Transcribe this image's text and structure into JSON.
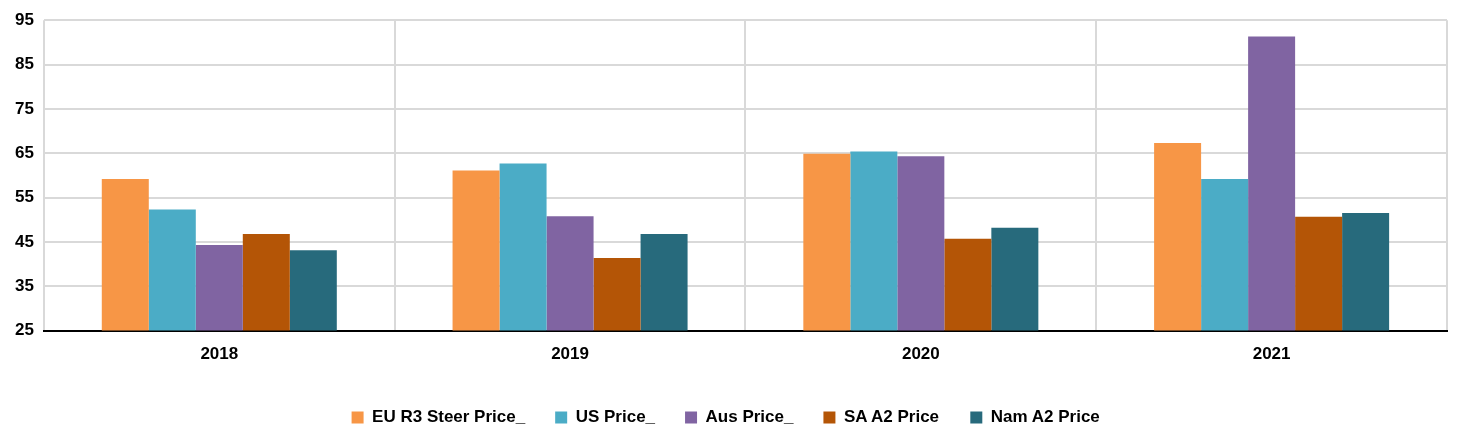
{
  "chart_data": {
    "type": "bar",
    "categories": [
      "2018",
      "2019",
      "2020",
      "2021"
    ],
    "series": [
      {
        "name": "EU R3 Steer Price_",
        "color": "#f79646",
        "values": [
          59.2,
          61.1,
          64.9,
          67.3
        ]
      },
      {
        "name": "US Price_",
        "color": "#4bacc6",
        "values": [
          52.3,
          62.7,
          65.4,
          59.2
        ]
      },
      {
        "name": "Aus Price_",
        "color": "#8064a2",
        "values": [
          44.3,
          50.8,
          64.3,
          91.3
        ]
      },
      {
        "name": "SA A2 Price",
        "color": "#b45506",
        "values": [
          46.8,
          41.4,
          45.7,
          50.7
        ]
      },
      {
        "name": "Nam A2 Price",
        "color": "#276a7c",
        "values": [
          43.1,
          46.8,
          48.2,
          51.5
        ]
      }
    ],
    "ylim": [
      25,
      95
    ],
    "yticks": [
      25,
      35,
      45,
      55,
      65,
      75,
      85,
      95
    ],
    "grid": true,
    "legend": "bottom"
  }
}
